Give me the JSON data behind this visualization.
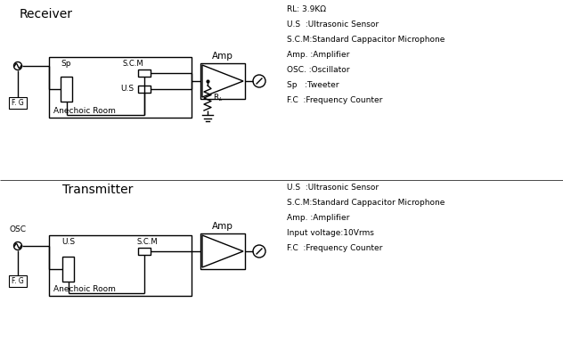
{
  "bg_color": "#ffffff",
  "line_color": "#000000",
  "title_receiver": "Receiver",
  "title_transmitter": "Transmitter",
  "legend_receiver": [
    "RL: 3.9KΩ",
    "U.S  :Ultrasonic Sensor",
    "S.C.M:Standard Cappacitor Microphone",
    "Amp. :Amplifier",
    "OSC. :Oscillator",
    "Sp   :Tweeter",
    "F.C  :Frequency Counter"
  ],
  "legend_transmitter": [
    "U.S  :Ultrasonic Sensor",
    "S.C.M:Standard Cappacitor Microphone",
    "Amp. :Amplifier",
    "Input voltage:10Vrms",
    "F.C  :Frequency Counter"
  ],
  "figsize": [
    6.32,
    4.04
  ],
  "dpi": 100
}
